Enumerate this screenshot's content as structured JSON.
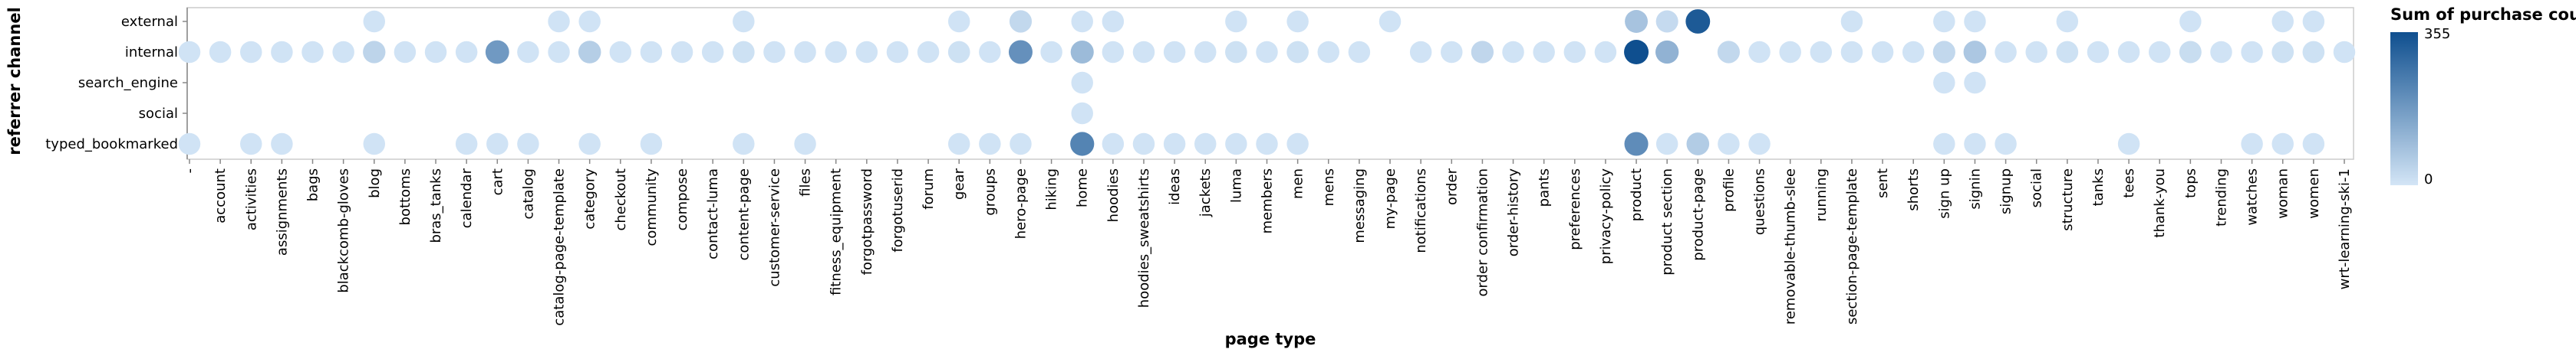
{
  "chart_data": {
    "type": "scatter",
    "xlabel": "page type",
    "ylabel": "referrer channel",
    "categories": [
      "-",
      "account",
      "activities",
      "assignments",
      "bags",
      "blackcomb-gloves",
      "blog",
      "bottoms",
      "bras_tanks",
      "calendar",
      "cart",
      "catalog",
      "catalog-page-template",
      "category",
      "checkout",
      "community",
      "compose",
      "contact-luma",
      "content-page",
      "customer-service",
      "files",
      "fitness_equipment",
      "forgotpassword",
      "forgotuserid",
      "forum",
      "gear",
      "groups",
      "hero-page",
      "hiking",
      "home",
      "hoodies",
      "hoodies_sweatshirts",
      "ideas",
      "jackets",
      "luma",
      "members",
      "men",
      "mens",
      "messaging",
      "my-page",
      "notifications",
      "order",
      "order confirmation",
      "order-history",
      "pants",
      "preferences",
      "privacy-policy",
      "product",
      "product section",
      "product-page",
      "profile",
      "questions",
      "removable-thumb-slee",
      "running",
      "section-page-template",
      "sent",
      "shorts",
      "sign up",
      "signin",
      "signup",
      "social",
      "structure",
      "tanks",
      "tees",
      "thank-you",
      "tops",
      "trending",
      "watches",
      "woman",
      "women",
      "wrt-learning-ski-1"
    ],
    "rows": [
      "external",
      "internal",
      "search_engine",
      "social",
      "typed_bookmarked"
    ],
    "legend": {
      "title": "Sum of purchase count",
      "min": 0,
      "max": 355,
      "min_label": "0",
      "max_label": "355"
    },
    "color_range": [
      "#d3e5f6",
      "#0f4f8f"
    ],
    "grid": false,
    "series": [
      {
        "name": "external",
        "points": [
          [
            "blog",
            5
          ],
          [
            "catalog-page-template",
            5
          ],
          [
            "category",
            5
          ],
          [
            "content-page",
            5
          ],
          [
            "gear",
            5
          ],
          [
            "hero-page",
            30
          ],
          [
            "home",
            5
          ],
          [
            "hoodies",
            5
          ],
          [
            "luma",
            5
          ],
          [
            "men",
            5
          ],
          [
            "my-page",
            5
          ],
          [
            "product",
            80
          ],
          [
            "product section",
            25
          ],
          [
            "product-page",
            330
          ],
          [
            "section-page-template",
            5
          ],
          [
            "sign up",
            5
          ],
          [
            "signin",
            5
          ],
          [
            "structure",
            5
          ],
          [
            "tops",
            5
          ],
          [
            "woman",
            5
          ],
          [
            "women",
            5
          ]
        ]
      },
      {
        "name": "internal",
        "points": [
          [
            "-",
            5
          ],
          [
            "account",
            5
          ],
          [
            "activities",
            5
          ],
          [
            "assignments",
            5
          ],
          [
            "bags",
            5
          ],
          [
            "blackcomb-gloves",
            5
          ],
          [
            "blog",
            40
          ],
          [
            "bottoms",
            5
          ],
          [
            "bras_tanks",
            5
          ],
          [
            "calendar",
            5
          ],
          [
            "cart",
            180
          ],
          [
            "catalog",
            5
          ],
          [
            "catalog-page-template",
            5
          ],
          [
            "category",
            55
          ],
          [
            "checkout",
            5
          ],
          [
            "community",
            5
          ],
          [
            "compose",
            5
          ],
          [
            "contact-luma",
            5
          ],
          [
            "content-page",
            10
          ],
          [
            "customer-service",
            5
          ],
          [
            "files",
            5
          ],
          [
            "fitness_equipment",
            5
          ],
          [
            "forgotpassword",
            5
          ],
          [
            "forgotuserid",
            5
          ],
          [
            "forum",
            5
          ],
          [
            "gear",
            10
          ],
          [
            "groups",
            5
          ],
          [
            "hero-page",
            200
          ],
          [
            "hiking",
            5
          ],
          [
            "home",
            100
          ],
          [
            "hoodies",
            5
          ],
          [
            "hoodies_sweatshirts",
            5
          ],
          [
            "ideas",
            5
          ],
          [
            "jackets",
            5
          ],
          [
            "luma",
            10
          ],
          [
            "members",
            5
          ],
          [
            "men",
            10
          ],
          [
            "mens",
            5
          ],
          [
            "messaging",
            5
          ],
          [
            "notifications",
            5
          ],
          [
            "order",
            5
          ],
          [
            "order confirmation",
            35
          ],
          [
            "order-history",
            5
          ],
          [
            "pants",
            5
          ],
          [
            "preferences",
            5
          ],
          [
            "privacy-policy",
            5
          ],
          [
            "product",
            355
          ],
          [
            "product section",
            120
          ],
          [
            "profile",
            30
          ],
          [
            "questions",
            5
          ],
          [
            "removable-thumb-slee",
            5
          ],
          [
            "running",
            5
          ],
          [
            "section-page-template",
            5
          ],
          [
            "sent",
            5
          ],
          [
            "shorts",
            5
          ],
          [
            "sign up",
            30
          ],
          [
            "signin",
            70
          ],
          [
            "signup",
            5
          ],
          [
            "social",
            5
          ],
          [
            "structure",
            10
          ],
          [
            "tanks",
            5
          ],
          [
            "tees",
            5
          ],
          [
            "thank-you",
            5
          ],
          [
            "tops",
            20
          ],
          [
            "trending",
            5
          ],
          [
            "watches",
            5
          ],
          [
            "woman",
            10
          ],
          [
            "women",
            10
          ],
          [
            "wrt-learning-ski-1",
            5
          ]
        ]
      },
      {
        "name": "search_engine",
        "points": [
          [
            "home",
            5
          ],
          [
            "sign up",
            5
          ],
          [
            "signin",
            5
          ]
        ]
      },
      {
        "name": "social",
        "points": [
          [
            "home",
            5
          ]
        ]
      },
      {
        "name": "typed_bookmarked",
        "points": [
          [
            "-",
            5
          ],
          [
            "activities",
            5
          ],
          [
            "assignments",
            5
          ],
          [
            "blog",
            5
          ],
          [
            "calendar",
            5
          ],
          [
            "cart",
            5
          ],
          [
            "catalog",
            5
          ],
          [
            "category",
            5
          ],
          [
            "community",
            5
          ],
          [
            "content-page",
            5
          ],
          [
            "files",
            5
          ],
          [
            "gear",
            5
          ],
          [
            "groups",
            5
          ],
          [
            "hero-page",
            5
          ],
          [
            "home",
            230
          ],
          [
            "hoodies",
            5
          ],
          [
            "hoodies_sweatshirts",
            5
          ],
          [
            "ideas",
            5
          ],
          [
            "jackets",
            5
          ],
          [
            "luma",
            5
          ],
          [
            "members",
            5
          ],
          [
            "men",
            5
          ],
          [
            "product",
            210
          ],
          [
            "product section",
            5
          ],
          [
            "product-page",
            60
          ],
          [
            "profile",
            5
          ],
          [
            "questions",
            5
          ],
          [
            "sign up",
            5
          ],
          [
            "signin",
            5
          ],
          [
            "signup",
            5
          ],
          [
            "tees",
            5
          ],
          [
            "watches",
            5
          ],
          [
            "woman",
            5
          ],
          [
            "women",
            5
          ]
        ]
      }
    ]
  }
}
